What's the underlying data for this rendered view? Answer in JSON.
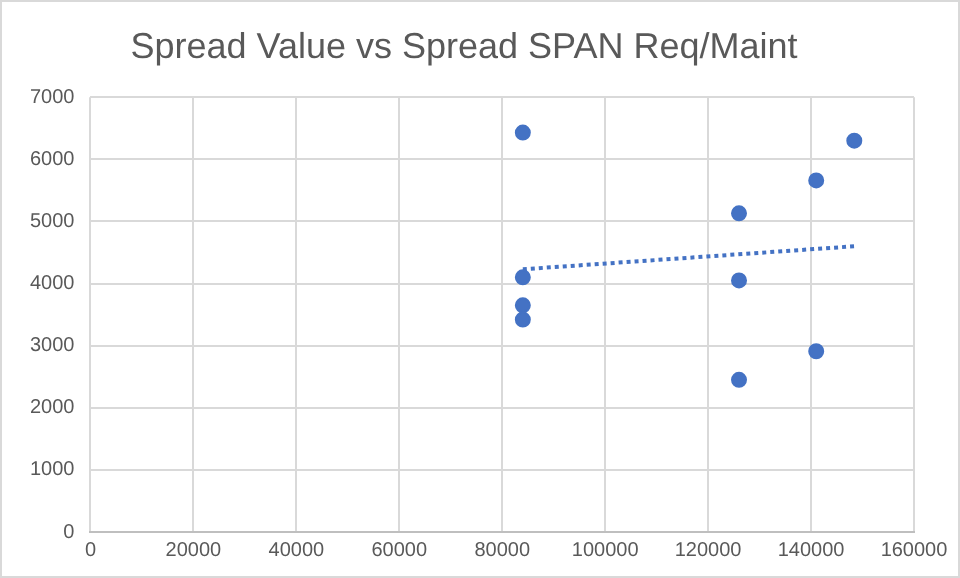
{
  "chart_data": {
    "type": "scatter",
    "title": "Spread Value vs Spread SPAN Req/Maint",
    "xlim": [
      0,
      160000
    ],
    "xticks": [
      0,
      20000,
      40000,
      60000,
      80000,
      100000,
      120000,
      140000,
      160000
    ],
    "ylim": [
      0,
      7000
    ],
    "yticks": [
      0,
      1000,
      2000,
      3000,
      4000,
      5000,
      6000,
      7000
    ],
    "grid": true,
    "legend": false,
    "marker": "circle",
    "series": [
      {
        "color": "#4472c4",
        "x": [
          84000,
          84000,
          84000,
          84000,
          126000,
          126000,
          126000,
          141000,
          141000,
          148400
        ],
        "values": [
          6430,
          4100,
          3650,
          3420,
          5130,
          4050,
          2450,
          5660,
          2910,
          6300
        ]
      },
      {
        "type": "line",
        "color": "#4472c4",
        "line_style": "dotted",
        "marker": "none",
        "x": [
          84000,
          148400
        ],
        "values": [
          4230,
          4600
        ]
      }
    ]
  }
}
